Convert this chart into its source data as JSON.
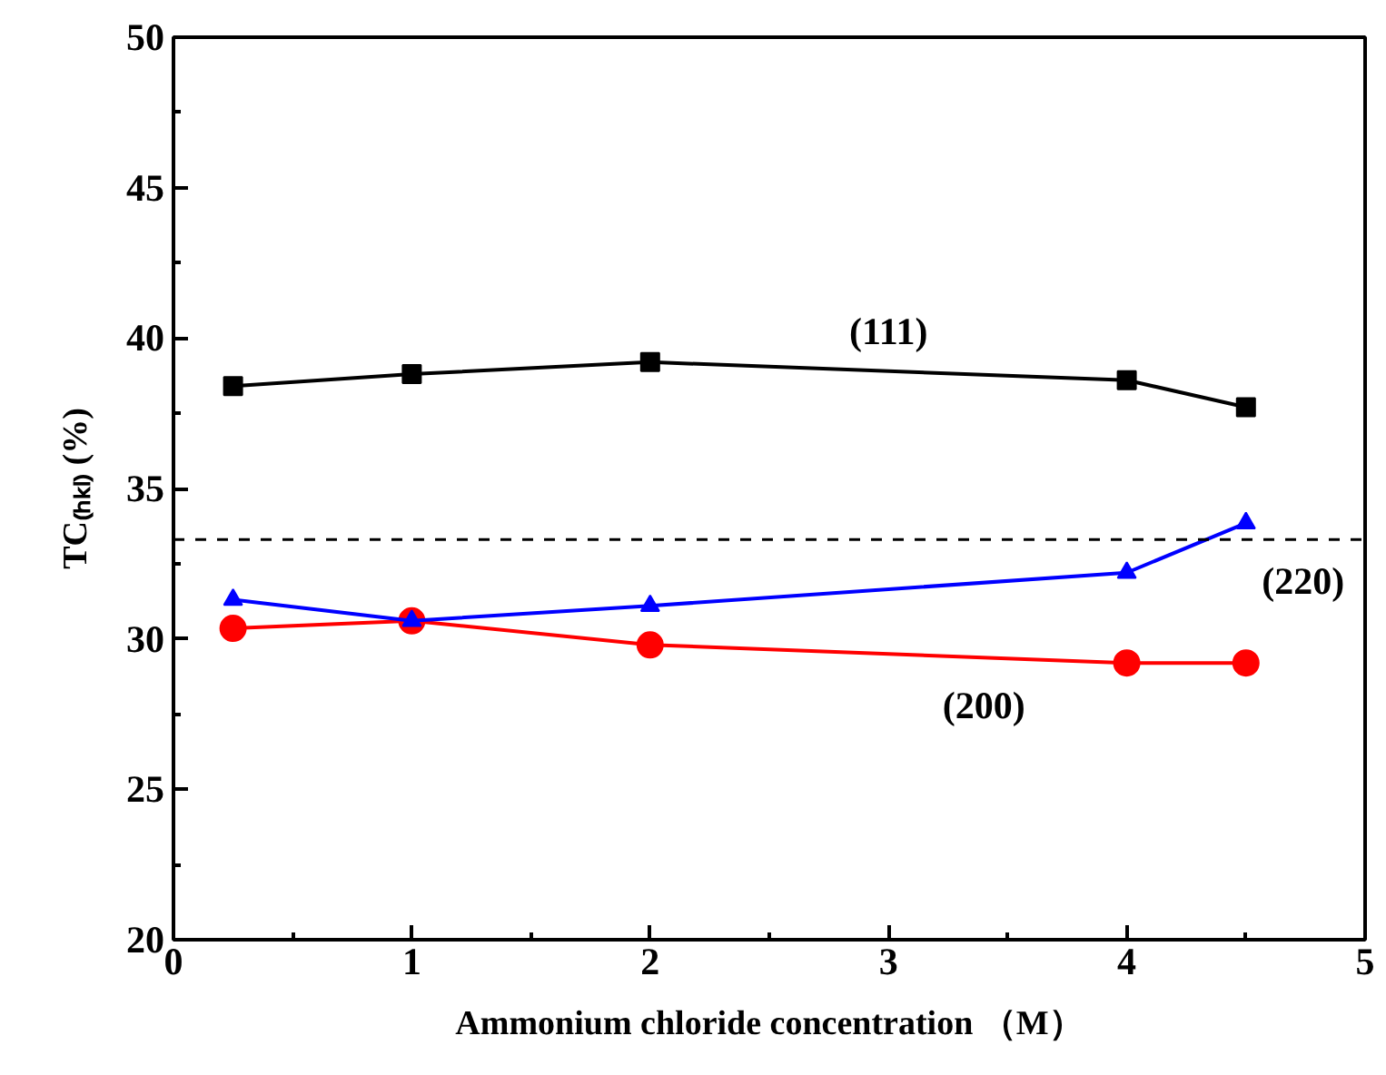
{
  "chart_data": {
    "type": "line",
    "xlabel": "Ammonium chloride concentration （M）",
    "ylabel": "TC₍ₕₖₗ₎ (%)",
    "x": [
      0.25,
      1,
      2,
      4,
      4.5
    ],
    "xlim": [
      0,
      5
    ],
    "xticks": [
      0,
      1,
      2,
      3,
      4,
      5
    ],
    "ylim": [
      20,
      50
    ],
    "yticks": [
      20,
      25,
      30,
      35,
      40,
      45,
      50
    ],
    "series": [
      {
        "name": "(111)",
        "color": "#000000",
        "marker": "square",
        "values": [
          38.4,
          38.8,
          39.2,
          38.6,
          37.7
        ]
      },
      {
        "name": "(200)",
        "color": "#ff0000",
        "marker": "circle",
        "values": [
          30.35,
          30.6,
          29.8,
          29.2,
          29.2
        ]
      },
      {
        "name": "(220)",
        "color": "#0000ff",
        "marker": "triangle",
        "values": [
          31.3,
          30.6,
          31.1,
          32.2,
          33.85
        ]
      }
    ],
    "ref_lines": [
      {
        "axis": "y",
        "value": 33.3,
        "color": "#000000",
        "line_style": "dashed"
      }
    ],
    "grid": false,
    "line_style": "solid"
  }
}
